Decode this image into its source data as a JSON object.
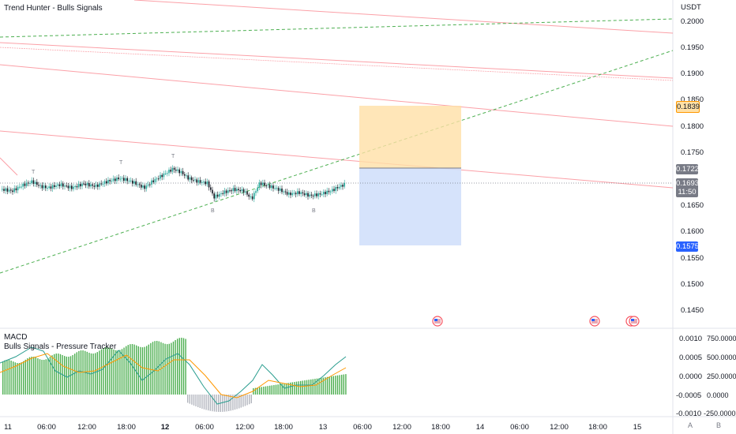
{
  "header": {
    "indicator_title": "Trend Hunter - Bulls Signals"
  },
  "price_axis": {
    "currency": "USDT",
    "ticks": [
      "0.2000",
      "0.1950",
      "0.1900",
      "0.1850",
      "0.1800",
      "0.1750",
      "0.1700",
      "0.1650",
      "0.1600",
      "0.1550",
      "0.1500",
      "0.1450"
    ],
    "tags": {
      "target": "0.1839",
      "entry": "0.1722",
      "current": "0.1693",
      "countdown": "11:50",
      "stop": "0.1575"
    }
  },
  "time_axis": {
    "ticks": [
      "11",
      "06:00",
      "12:00",
      "18:00",
      "12",
      "06:00",
      "12:00",
      "18:00",
      "13",
      "06:00",
      "12:00",
      "18:00",
      "14",
      "06:00",
      "12:00",
      "18:00",
      "15"
    ]
  },
  "candle_markers": [
    "T",
    "T",
    "T",
    "B",
    "B"
  ],
  "macd_pane": {
    "title": "MACD",
    "subtitle": "Bulls Signals - Pressure Tracker",
    "left_ticks": [
      "0.0010",
      "0.0005",
      "0.0000",
      "-0.0005",
      "-0.0010"
    ],
    "right_ticks": [
      "750.0000",
      "500.0000",
      "250.0000",
      "0.0000",
      "-250.0000"
    ]
  },
  "bottom_buttons": {
    "a": "A",
    "b": "B"
  },
  "colors": {
    "up": "#26a69a",
    "down": "#131722",
    "resistance": "#f7525f",
    "trend_green": "#4caf50",
    "target_zone": "#ffe0a6",
    "stop_zone": "#d1e0fb",
    "hist_green": "#4caf50",
    "hist_gray": "#b2b5be",
    "macd_line": "#2a9d8f",
    "signal_line": "#ff9800"
  }
}
